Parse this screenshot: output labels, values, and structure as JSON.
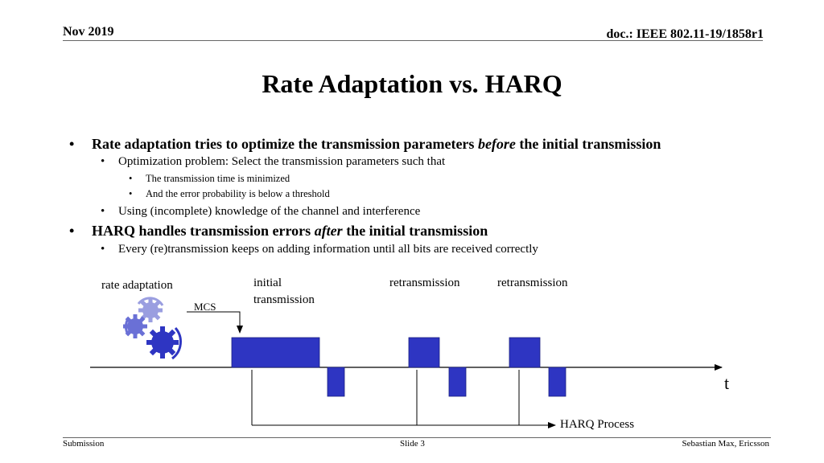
{
  "header": {
    "date": "Nov 2019",
    "doc_id": "doc.: IEEE 802.11-19/1858r1"
  },
  "title": "Rate Adaptation vs. HARQ",
  "bullets": {
    "b1_pre": "Rate adaptation tries to optimize the transmission parameters ",
    "b1_em": "before",
    "b1_post": " the initial transmission",
    "b1_1": "Optimization problem: Select the transmission parameters such that",
    "b1_1_1": "The transmission time is minimized",
    "b1_1_2": "And the error probability is below a threshold",
    "b1_2": "Using (incomplete) knowledge of the channel and interference",
    "b2_pre": "HARQ handles transmission errors ",
    "b2_em": "after",
    "b2_post": " the initial transmission",
    "b2_1": "Every (re)transmission keeps on adding information until all bits are received correctly"
  },
  "diagram": {
    "rate_adaptation": "rate adaptation",
    "mcs": "MCS",
    "initial_line1": "initial",
    "initial_line2": "transmission",
    "retrans1": "retransmission",
    "retrans2": "retransmission",
    "axis_label": "t",
    "harq_process": "HARQ Process",
    "bar_color": "#2e35c2",
    "gear_colors": [
      "#9a9ee0",
      "#6a70d6",
      "#2e35c2"
    ]
  },
  "footer": {
    "left": "Submission",
    "center": "Slide 3",
    "right": "Sebastian Max, Ericsson"
  }
}
